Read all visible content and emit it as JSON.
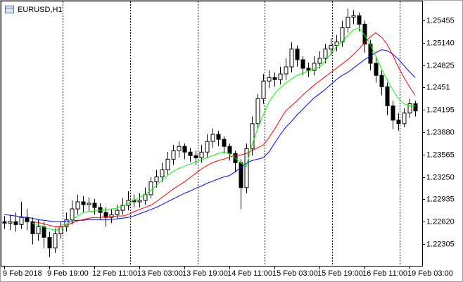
{
  "chart_data": {
    "type": "candlestick",
    "title": "EURUSD,H1",
    "categories": [
      "9 Feb 2018",
      null,
      null,
      null,
      null,
      null,
      null,
      null,
      "9 Feb 19:00",
      null,
      null,
      null,
      null,
      null,
      null,
      null,
      "12 Feb 11:00",
      null,
      null,
      null,
      null,
      null,
      null,
      null,
      "13 Feb 03:00",
      null,
      null,
      null,
      null,
      null,
      null,
      null,
      "13 Feb 19:00",
      null,
      null,
      null,
      null,
      null,
      null,
      null,
      "14 Feb 11:00",
      null,
      null,
      null,
      null,
      null,
      null,
      null,
      "15 Feb 03:00",
      null,
      null,
      null,
      null,
      null,
      null,
      null,
      "15 Feb 19:00",
      null,
      null,
      null,
      null,
      null,
      null,
      null,
      "16 Feb 11:00",
      null,
      null,
      null,
      null,
      null,
      null,
      null,
      "19 Feb 03:00",
      null
    ],
    "ohlc": {
      "open": [
        1.2262,
        1.226,
        1.2262,
        1.2258,
        1.2268,
        1.2262,
        1.2245,
        1.2255,
        1.224,
        1.2225,
        1.2245,
        1.2255,
        1.2265,
        1.228,
        1.229,
        1.2286,
        1.2288,
        1.2282,
        1.2275,
        1.2268,
        1.2272,
        1.2278,
        1.2285,
        1.2292,
        1.229,
        1.2292,
        1.23,
        1.2318,
        1.2325,
        1.2335,
        1.235,
        1.2362,
        1.2368,
        1.236,
        1.2355,
        1.2352,
        1.236,
        1.2375,
        1.2385,
        1.2378,
        1.2368,
        1.2358,
        1.2345,
        1.231,
        1.2365,
        1.24,
        1.2435,
        1.246,
        1.2465,
        1.2462,
        1.247,
        1.248,
        1.2505,
        1.249,
        1.2478,
        1.2475,
        1.2485,
        1.2492,
        1.2505,
        1.251,
        1.2515,
        1.2535,
        1.255,
        1.2552,
        1.254,
        1.2512,
        1.2485,
        1.2468,
        1.2452,
        1.2425,
        1.2405,
        1.24,
        1.2415,
        1.2428
      ],
      "high": [
        1.227,
        1.2272,
        1.2275,
        1.229,
        1.228,
        1.2268,
        1.2265,
        1.2262,
        1.2248,
        1.2252,
        1.2262,
        1.2275,
        1.2292,
        1.23,
        1.2298,
        1.2296,
        1.2294,
        1.2288,
        1.2282,
        1.228,
        1.2286,
        1.2295,
        1.2305,
        1.23,
        1.2302,
        1.231,
        1.2325,
        1.2335,
        1.2345,
        1.236,
        1.237,
        1.2375,
        1.2372,
        1.2366,
        1.2362,
        1.237,
        1.2385,
        1.2393,
        1.239,
        1.2382,
        1.2372,
        1.2362,
        1.235,
        1.2372,
        1.241,
        1.2442,
        1.247,
        1.2475,
        1.2472,
        1.248,
        1.2492,
        1.2515,
        1.251,
        1.2495,
        1.2486,
        1.2495,
        1.2502,
        1.2512,
        1.252,
        1.2525,
        1.2545,
        1.2562,
        1.256,
        1.2556,
        1.2545,
        1.2518,
        1.2492,
        1.2475,
        1.2458,
        1.2432,
        1.2415,
        1.2422,
        1.2435,
        1.2432
      ],
      "low": [
        1.2252,
        1.225,
        1.2248,
        1.2252,
        1.225,
        1.223,
        1.2235,
        1.2225,
        1.2212,
        1.2218,
        1.2238,
        1.2248,
        1.2258,
        1.2272,
        1.2275,
        1.2276,
        1.2272,
        1.2265,
        1.2255,
        1.226,
        1.2266,
        1.2272,
        1.2278,
        1.2282,
        1.2282,
        1.2286,
        1.2295,
        1.231,
        1.2318,
        1.2328,
        1.2342,
        1.2352,
        1.235,
        1.2346,
        1.2342,
        1.2345,
        1.2352,
        1.2366,
        1.2368,
        1.2358,
        1.2348,
        1.2332,
        1.228,
        1.2302,
        1.2355,
        1.2392,
        1.2428,
        1.245,
        1.2452,
        1.2455,
        1.2462,
        1.2472,
        1.248,
        1.2468,
        1.2466,
        1.2468,
        1.2478,
        1.2485,
        1.2496,
        1.2502,
        1.2508,
        1.2528,
        1.254,
        1.253,
        1.25,
        1.2475,
        1.2458,
        1.244,
        1.2412,
        1.2392,
        1.239,
        1.2395,
        1.2408,
        1.241
      ],
      "close": [
        1.226,
        1.2262,
        1.2258,
        1.2268,
        1.2262,
        1.2245,
        1.2255,
        1.224,
        1.2225,
        1.2245,
        1.2255,
        1.2265,
        1.228,
        1.229,
        1.2286,
        1.2288,
        1.2282,
        1.2275,
        1.2268,
        1.2272,
        1.2278,
        1.2285,
        1.2292,
        1.229,
        1.2292,
        1.23,
        1.2318,
        1.2325,
        1.2335,
        1.235,
        1.2362,
        1.2368,
        1.236,
        1.2355,
        1.2352,
        1.236,
        1.2375,
        1.2385,
        1.2378,
        1.2368,
        1.2358,
        1.2345,
        1.231,
        1.2365,
        1.24,
        1.2435,
        1.246,
        1.2465,
        1.2462,
        1.247,
        1.248,
        1.2505,
        1.249,
        1.2478,
        1.2475,
        1.2485,
        1.2492,
        1.2505,
        1.251,
        1.2515,
        1.2535,
        1.255,
        1.2552,
        1.254,
        1.2512,
        1.2485,
        1.2468,
        1.2452,
        1.2425,
        1.2405,
        1.24,
        1.2415,
        1.2428,
        1.2418
      ]
    },
    "up_color": "#ffffff",
    "down_color": "#000000",
    "lines": [
      {
        "color": "#0000ff",
        "values": [
          1.2272,
          1.2271,
          1.227,
          1.2269,
          1.2268,
          1.2267,
          1.2265,
          1.2264,
          1.2263,
          1.2262,
          1.2262,
          1.2263,
          1.2263,
          1.2264,
          1.2264,
          1.2265,
          1.2265,
          1.2265,
          1.2265,
          1.2265,
          1.2266,
          1.2267,
          1.2268,
          1.227,
          1.2273,
          1.2276,
          1.2279,
          1.2282,
          1.2286,
          1.229,
          1.2294,
          1.2298,
          1.2302,
          1.2305,
          1.2309,
          1.2312,
          1.2316,
          1.2319,
          1.2322,
          1.2325,
          1.2327,
          1.2332,
          1.2338,
          1.2344,
          1.2348,
          1.235,
          1.2352,
          1.236,
          1.2372,
          1.2384,
          1.2395,
          1.2403,
          1.2412,
          1.242,
          1.2428,
          1.2436,
          1.2442,
          1.2448,
          1.2455,
          1.2462,
          1.2468,
          1.2472,
          1.2478,
          1.2484,
          1.249,
          1.2495,
          1.25,
          1.2504,
          1.2503,
          1.2498,
          1.2491,
          1.2482,
          1.2473,
          1.2465
        ]
      },
      {
        "color": "#ff0000",
        "values": [
          null,
          null,
          null,
          null,
          null,
          1.2262,
          1.2261,
          1.2259,
          1.2257,
          1.2255,
          1.2255,
          1.2257,
          1.226,
          1.2263,
          1.2265,
          1.2267,
          1.2268,
          1.2268,
          1.2269,
          1.2269,
          1.227,
          1.227,
          1.2272,
          1.2276,
          1.2279,
          1.2282,
          1.2285,
          1.229,
          1.2296,
          1.2302,
          1.2308,
          1.2313,
          1.2318,
          1.2324,
          1.233,
          1.2336,
          1.2341,
          1.2345,
          1.2348,
          1.235,
          1.2353,
          1.2355,
          1.2356,
          1.2358,
          1.2362,
          1.2366,
          1.237,
          1.238,
          1.2392,
          1.2405,
          1.2418,
          1.2425,
          1.2432,
          1.244,
          1.2447,
          1.2454,
          1.246,
          1.2466,
          1.2472,
          1.2478,
          1.2484,
          1.249,
          1.2497,
          1.2505,
          1.2514,
          1.2522,
          1.2528,
          1.2522,
          1.2512,
          1.2497,
          1.248,
          1.2465,
          1.2452,
          1.244
        ]
      },
      {
        "color": "#00ff00",
        "values": [
          null,
          null,
          null,
          null,
          null,
          1.226,
          1.2258,
          1.2255,
          1.2252,
          1.225,
          1.2252,
          1.2258,
          1.2264,
          1.227,
          1.2275,
          1.2276,
          1.2277,
          1.2278,
          1.2279,
          1.228,
          1.2281,
          1.2284,
          1.2288,
          1.2292,
          1.2296,
          1.23,
          1.2306,
          1.2313,
          1.232,
          1.2327,
          1.2333,
          1.2337,
          1.234,
          1.2343,
          1.2346,
          1.2349,
          1.2352,
          1.2355,
          1.2358,
          1.236,
          1.2358,
          1.2352,
          1.2345,
          1.234,
          1.237,
          1.2392,
          1.2412,
          1.243,
          1.2442,
          1.245,
          1.2457,
          1.2463,
          1.2468,
          1.2471,
          1.2474,
          1.2477,
          1.248,
          1.2488,
          1.2498,
          1.2508,
          1.2516,
          1.2524,
          1.2532,
          1.2535,
          1.2525,
          1.2512,
          1.2495,
          1.2478,
          1.2462,
          1.2448,
          1.2436,
          1.2428,
          1.2425,
          1.2425
        ]
      }
    ],
    "ylim": [
      1.21989,
      1.25731
    ],
    "yticks": [
      1.25455,
      {
        "value": 1.2514,
        "label": "1.25140"
      },
      1.24825,
      1.2451,
      1.24195,
      {
        "value": 1.2388,
        "label": "1.23880"
      },
      1.23565,
      {
        "value": 1.2325,
        "label": "1.23250"
      },
      1.22935,
      {
        "value": 1.2262,
        "label": "1.22620"
      },
      1.22305
    ]
  }
}
